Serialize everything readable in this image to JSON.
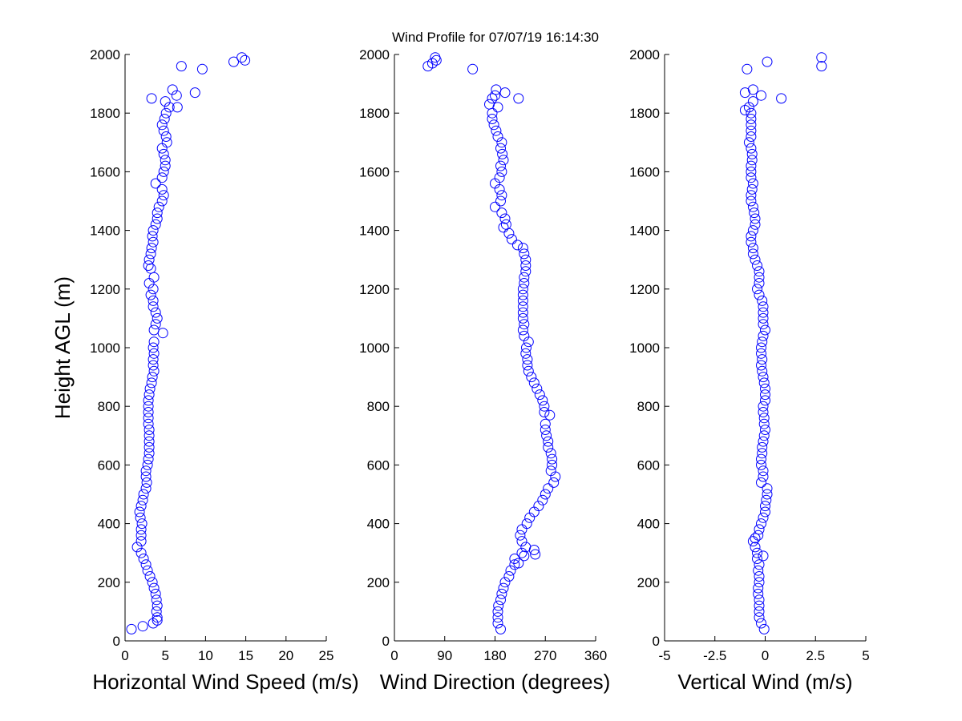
{
  "title": "Wind Profile for  07/07/19 16:14:30",
  "chart_data": [
    {
      "type": "scatter",
      "name": "speed",
      "xlabel": "Horizontal Wind Speed (m/s)",
      "ylabel": "Height AGL (m)",
      "xlim": [
        0,
        25
      ],
      "ylim": [
        0,
        2000
      ],
      "xticks": [
        0,
        5,
        10,
        15,
        20,
        25
      ],
      "xtick_labels": [
        "0",
        "5",
        "10",
        "15",
        "20",
        "25"
      ],
      "yticks": [
        0,
        200,
        400,
        600,
        800,
        1000,
        1200,
        1400,
        1600,
        1800,
        2000
      ],
      "ytick_labels": [
        "0",
        "200",
        "400",
        "600",
        "800",
        "1000",
        "1200",
        "1400",
        "1600",
        "1800",
        "2000"
      ],
      "marker_color": "#0000ff",
      "points": [
        [
          0.8,
          40
        ],
        [
          2.2,
          50
        ],
        [
          3.5,
          60
        ],
        [
          4.0,
          70
        ],
        [
          4.0,
          80
        ],
        [
          3.9,
          100
        ],
        [
          4.0,
          120
        ],
        [
          3.9,
          140
        ],
        [
          3.8,
          160
        ],
        [
          3.6,
          180
        ],
        [
          3.4,
          200
        ],
        [
          3.1,
          220
        ],
        [
          2.8,
          240
        ],
        [
          2.6,
          260
        ],
        [
          2.3,
          280
        ],
        [
          2.0,
          300
        ],
        [
          1.5,
          320
        ],
        [
          2.0,
          340
        ],
        [
          2.0,
          360
        ],
        [
          2.0,
          380
        ],
        [
          2.1,
          400
        ],
        [
          1.9,
          420
        ],
        [
          1.8,
          440
        ],
        [
          2.0,
          460
        ],
        [
          2.2,
          480
        ],
        [
          2.3,
          500
        ],
        [
          2.6,
          520
        ],
        [
          2.7,
          540
        ],
        [
          2.6,
          560
        ],
        [
          2.6,
          580
        ],
        [
          2.8,
          600
        ],
        [
          2.9,
          620
        ],
        [
          3.0,
          640
        ],
        [
          3.0,
          660
        ],
        [
          3.0,
          680
        ],
        [
          3.0,
          700
        ],
        [
          3.0,
          720
        ],
        [
          2.9,
          740
        ],
        [
          2.9,
          760
        ],
        [
          2.9,
          780
        ],
        [
          2.9,
          800
        ],
        [
          2.9,
          820
        ],
        [
          3.0,
          840
        ],
        [
          3.1,
          860
        ],
        [
          3.3,
          880
        ],
        [
          3.4,
          900
        ],
        [
          3.6,
          920
        ],
        [
          3.5,
          940
        ],
        [
          3.5,
          960
        ],
        [
          3.6,
          980
        ],
        [
          3.5,
          1000
        ],
        [
          3.6,
          1020
        ],
        [
          4.7,
          1050
        ],
        [
          3.6,
          1060
        ],
        [
          3.8,
          1080
        ],
        [
          4.0,
          1100
        ],
        [
          3.8,
          1120
        ],
        [
          3.5,
          1140
        ],
        [
          3.5,
          1160
        ],
        [
          3.2,
          1180
        ],
        [
          3.5,
          1200
        ],
        [
          3.0,
          1220
        ],
        [
          3.6,
          1240
        ],
        [
          3.2,
          1270
        ],
        [
          2.9,
          1280
        ],
        [
          3.0,
          1300
        ],
        [
          3.2,
          1320
        ],
        [
          3.3,
          1340
        ],
        [
          3.5,
          1360
        ],
        [
          3.4,
          1380
        ],
        [
          3.5,
          1400
        ],
        [
          3.8,
          1420
        ],
        [
          4.0,
          1440
        ],
        [
          4.0,
          1460
        ],
        [
          4.2,
          1480
        ],
        [
          4.6,
          1500
        ],
        [
          4.8,
          1520
        ],
        [
          4.6,
          1540
        ],
        [
          3.8,
          1560
        ],
        [
          4.6,
          1580
        ],
        [
          4.8,
          1600
        ],
        [
          5.0,
          1620
        ],
        [
          5.0,
          1640
        ],
        [
          4.8,
          1660
        ],
        [
          4.6,
          1680
        ],
        [
          5.2,
          1700
        ],
        [
          5.1,
          1720
        ],
        [
          4.8,
          1740
        ],
        [
          4.6,
          1760
        ],
        [
          4.9,
          1780
        ],
        [
          5.1,
          1800
        ],
        [
          5.5,
          1820
        ],
        [
          6.5,
          1820
        ],
        [
          5.0,
          1840
        ],
        [
          3.3,
          1850
        ],
        [
          6.4,
          1860
        ],
        [
          8.7,
          1870
        ],
        [
          5.9,
          1880
        ],
        [
          9.6,
          1950
        ],
        [
          7.0,
          1960
        ],
        [
          13.5,
          1975
        ],
        [
          14.9,
          1980
        ],
        [
          14.5,
          1990
        ]
      ]
    },
    {
      "type": "scatter",
      "name": "direction",
      "xlabel": "Wind Direction (degrees)",
      "ylabel": "",
      "xlim": [
        0,
        360
      ],
      "ylim": [
        0,
        2000
      ],
      "xticks": [
        0,
        90,
        180,
        270,
        360
      ],
      "xtick_labels": [
        "0",
        "90",
        "180",
        "270",
        "360"
      ],
      "yticks": [
        0,
        200,
        400,
        600,
        800,
        1000,
        1200,
        1400,
        1600,
        1800,
        2000
      ],
      "ytick_labels": [
        "0",
        "200",
        "400",
        "600",
        "800",
        "1000",
        "1200",
        "1400",
        "1600",
        "1800",
        "2000"
      ],
      "marker_color": "#0000ff",
      "points": [
        [
          190,
          40
        ],
        [
          185,
          60
        ],
        [
          185,
          80
        ],
        [
          185,
          100
        ],
        [
          186,
          120
        ],
        [
          190,
          140
        ],
        [
          192,
          160
        ],
        [
          195,
          180
        ],
        [
          198,
          200
        ],
        [
          205,
          220
        ],
        [
          208,
          240
        ],
        [
          215,
          260
        ],
        [
          222,
          265
        ],
        [
          215,
          280
        ],
        [
          232,
          290
        ],
        [
          252,
          295
        ],
        [
          228,
          300
        ],
        [
          250,
          310
        ],
        [
          235,
          320
        ],
        [
          228,
          340
        ],
        [
          225,
          360
        ],
        [
          228,
          380
        ],
        [
          237,
          400
        ],
        [
          242,
          420
        ],
        [
          250,
          440
        ],
        [
          258,
          460
        ],
        [
          265,
          480
        ],
        [
          270,
          500
        ],
        [
          275,
          520
        ],
        [
          285,
          540
        ],
        [
          288,
          560
        ],
        [
          280,
          580
        ],
        [
          282,
          600
        ],
        [
          282,
          620
        ],
        [
          280,
          640
        ],
        [
          275,
          660
        ],
        [
          275,
          680
        ],
        [
          272,
          700
        ],
        [
          270,
          720
        ],
        [
          270,
          740
        ],
        [
          278,
          770
        ],
        [
          268,
          780
        ],
        [
          268,
          800
        ],
        [
          265,
          820
        ],
        [
          260,
          840
        ],
        [
          255,
          860
        ],
        [
          250,
          880
        ],
        [
          245,
          900
        ],
        [
          240,
          920
        ],
        [
          238,
          940
        ],
        [
          238,
          960
        ],
        [
          235,
          980
        ],
        [
          236,
          1000
        ],
        [
          240,
          1020
        ],
        [
          232,
          1040
        ],
        [
          230,
          1060
        ],
        [
          232,
          1080
        ],
        [
          230,
          1100
        ],
        [
          230,
          1120
        ],
        [
          230,
          1140
        ],
        [
          230,
          1160
        ],
        [
          230,
          1180
        ],
        [
          230,
          1200
        ],
        [
          232,
          1220
        ],
        [
          232,
          1240
        ],
        [
          235,
          1260
        ],
        [
          235,
          1280
        ],
        [
          235,
          1300
        ],
        [
          232,
          1320
        ],
        [
          230,
          1340
        ],
        [
          220,
          1350
        ],
        [
          210,
          1370
        ],
        [
          205,
          1390
        ],
        [
          195,
          1410
        ],
        [
          200,
          1420
        ],
        [
          198,
          1440
        ],
        [
          192,
          1460
        ],
        [
          180,
          1480
        ],
        [
          190,
          1500
        ],
        [
          192,
          1520
        ],
        [
          188,
          1540
        ],
        [
          180,
          1560
        ],
        [
          188,
          1580
        ],
        [
          192,
          1600
        ],
        [
          190,
          1620
        ],
        [
          195,
          1640
        ],
        [
          193,
          1660
        ],
        [
          190,
          1680
        ],
        [
          192,
          1700
        ],
        [
          185,
          1720
        ],
        [
          182,
          1740
        ],
        [
          178,
          1760
        ],
        [
          175,
          1780
        ],
        [
          175,
          1800
        ],
        [
          185,
          1820
        ],
        [
          170,
          1830
        ],
        [
          175,
          1850
        ],
        [
          222,
          1850
        ],
        [
          180,
          1860
        ],
        [
          198,
          1870
        ],
        [
          182,
          1880
        ],
        [
          140,
          1950
        ],
        [
          60,
          1960
        ],
        [
          68,
          1970
        ],
        [
          75,
          1980
        ],
        [
          73,
          1990
        ]
      ]
    },
    {
      "type": "scatter",
      "name": "vertical",
      "xlabel": "Vertical Wind (m/s)",
      "ylabel": "",
      "xlim": [
        -5,
        5
      ],
      "ylim": [
        0,
        2000
      ],
      "xticks": [
        -5,
        -2.5,
        0,
        2.5,
        5
      ],
      "xtick_labels": [
        "-5",
        "-2.5",
        "0",
        "2.5",
        "5"
      ],
      "yticks": [
        0,
        200,
        400,
        600,
        800,
        1000,
        1200,
        1400,
        1600,
        1800,
        2000
      ],
      "ytick_labels": [
        "0",
        "200",
        "400",
        "600",
        "800",
        "1000",
        "1200",
        "1400",
        "1600",
        "1800",
        "2000"
      ],
      "marker_color": "#0000ff",
      "points": [
        [
          -0.05,
          40
        ],
        [
          -0.2,
          60
        ],
        [
          -0.3,
          80
        ],
        [
          -0.3,
          100
        ],
        [
          -0.3,
          120
        ],
        [
          -0.3,
          140
        ],
        [
          -0.35,
          160
        ],
        [
          -0.35,
          180
        ],
        [
          -0.3,
          200
        ],
        [
          -0.3,
          220
        ],
        [
          -0.35,
          240
        ],
        [
          -0.3,
          260
        ],
        [
          -0.4,
          280
        ],
        [
          -0.1,
          290
        ],
        [
          -0.4,
          300
        ],
        [
          -0.5,
          320
        ],
        [
          -0.6,
          340
        ],
        [
          -0.5,
          350
        ],
        [
          -0.35,
          360
        ],
        [
          -0.3,
          380
        ],
        [
          -0.2,
          400
        ],
        [
          -0.1,
          420
        ],
        [
          0.0,
          440
        ],
        [
          0.0,
          460
        ],
        [
          0.05,
          480
        ],
        [
          0.1,
          500
        ],
        [
          0.1,
          520
        ],
        [
          -0.2,
          540
        ],
        [
          -0.1,
          560
        ],
        [
          -0.1,
          580
        ],
        [
          -0.2,
          600
        ],
        [
          -0.2,
          620
        ],
        [
          -0.15,
          640
        ],
        [
          -0.15,
          660
        ],
        [
          -0.1,
          680
        ],
        [
          -0.05,
          700
        ],
        [
          0.0,
          720
        ],
        [
          -0.05,
          740
        ],
        [
          -0.05,
          760
        ],
        [
          -0.1,
          780
        ],
        [
          -0.1,
          800
        ],
        [
          0.0,
          820
        ],
        [
          0.0,
          840
        ],
        [
          0.0,
          860
        ],
        [
          -0.05,
          880
        ],
        [
          -0.1,
          900
        ],
        [
          -0.15,
          920
        ],
        [
          -0.2,
          940
        ],
        [
          -0.15,
          960
        ],
        [
          -0.2,
          980
        ],
        [
          -0.2,
          1000
        ],
        [
          -0.15,
          1020
        ],
        [
          -0.1,
          1040
        ],
        [
          0.0,
          1060
        ],
        [
          -0.1,
          1080
        ],
        [
          -0.1,
          1100
        ],
        [
          -0.1,
          1120
        ],
        [
          -0.1,
          1140
        ],
        [
          -0.15,
          1160
        ],
        [
          -0.3,
          1180
        ],
        [
          -0.4,
          1200
        ],
        [
          -0.3,
          1220
        ],
        [
          -0.3,
          1240
        ],
        [
          -0.3,
          1260
        ],
        [
          -0.4,
          1280
        ],
        [
          -0.5,
          1300
        ],
        [
          -0.6,
          1320
        ],
        [
          -0.6,
          1340
        ],
        [
          -0.7,
          1360
        ],
        [
          -0.7,
          1380
        ],
        [
          -0.6,
          1400
        ],
        [
          -0.5,
          1420
        ],
        [
          -0.5,
          1440
        ],
        [
          -0.55,
          1460
        ],
        [
          -0.6,
          1480
        ],
        [
          -0.7,
          1500
        ],
        [
          -0.7,
          1520
        ],
        [
          -0.65,
          1540
        ],
        [
          -0.6,
          1560
        ],
        [
          -0.7,
          1580
        ],
        [
          -0.7,
          1600
        ],
        [
          -0.7,
          1620
        ],
        [
          -0.65,
          1640
        ],
        [
          -0.65,
          1660
        ],
        [
          -0.7,
          1680
        ],
        [
          -0.8,
          1700
        ],
        [
          -0.7,
          1720
        ],
        [
          -0.7,
          1740
        ],
        [
          -0.7,
          1760
        ],
        [
          -0.7,
          1780
        ],
        [
          -0.7,
          1800
        ],
        [
          -1.0,
          1810
        ],
        [
          -0.8,
          1820
        ],
        [
          -0.6,
          1840
        ],
        [
          0.8,
          1850
        ],
        [
          -0.2,
          1860
        ],
        [
          -1.0,
          1870
        ],
        [
          -0.6,
          1880
        ],
        [
          -0.9,
          1950
        ],
        [
          0.1,
          1975
        ],
        [
          2.8,
          1960
        ],
        [
          2.8,
          1990
        ]
      ]
    }
  ]
}
